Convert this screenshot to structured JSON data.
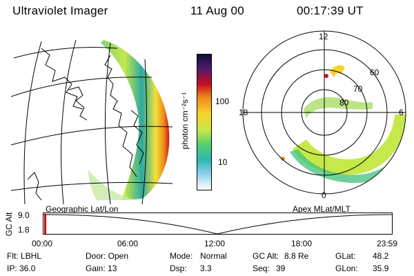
{
  "header": {
    "instrument": "Ultraviolet Imager",
    "date": "11 Aug 00",
    "time": "00:17:39 UT"
  },
  "colorbar": {
    "label": "photon cm⁻²s⁻¹",
    "ticks": [
      "100",
      "10"
    ]
  },
  "geo_panel": {
    "caption": "Geographic Lat/Lon"
  },
  "polar_panel": {
    "caption": "Apex MLat/MLT",
    "mlt_labels": [
      "12",
      "18",
      "6",
      "0"
    ],
    "lat_labels": [
      "60",
      "70",
      "80"
    ]
  },
  "timeline": {
    "ylabel": "GC Alt",
    "y_ticks": [
      "9.0",
      "1.8"
    ],
    "x_ticks": [
      "00:00",
      "06:00",
      "12:00",
      "18:00",
      "23:59"
    ]
  },
  "info": {
    "flt": "Flt: LBHL",
    "ip": "IP: 36.0",
    "door": "Door: Open",
    "gain": "Gain: 13",
    "mode_label": "Mode:",
    "mode_value": "Normal",
    "dsp_label": "Dsp:",
    "dsp_value": "3.3",
    "gcalt_label": "GC Alt:",
    "gcalt_value": "8.8 Re",
    "seq_label": "Seq:",
    "seq_value": "39",
    "glat_label": "GLat:",
    "glat_value": "48.2",
    "glon_label": "GLon:",
    "glon_value": "35.9"
  }
}
